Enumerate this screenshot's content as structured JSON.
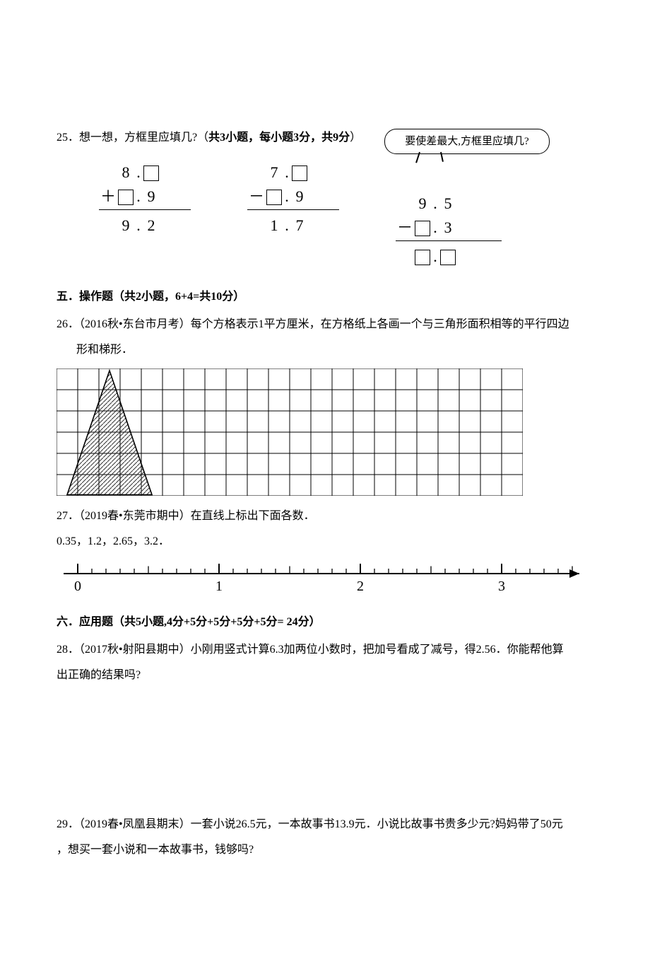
{
  "colors": {
    "text": "#000000",
    "bg": "#ffffff",
    "hatch": "#555555"
  },
  "q25": {
    "stem": "25．想一想，方框里应填几?（",
    "stem_bold": "共3小题，每小题3分，共9分",
    "stem_tail": "）",
    "callout": "要使差最大,方框里应填几?",
    "p1": {
      "top_left": "8.",
      "row2_op": "＋",
      "row2_right": ".   9",
      "result": "9.   2"
    },
    "p2": {
      "top_left": "7.",
      "row2_op": "－",
      "row2_right": ".   9",
      "result": "1.   7"
    },
    "p3": {
      "top_right": "9.   5",
      "row2_op": "－",
      "row2_right": ".   3"
    }
  },
  "sec5": {
    "title": "五．操作题（共2小题，6+4=共10分）"
  },
  "q26": {
    "stem": "26．（2016秋•东台市月考）每个方格表示1平方厘米，在方格纸上各画一个与三角形面积相等的平行四边",
    "stem2": "形和梯形．",
    "grid": {
      "cols": 22,
      "rows": 6,
      "cell": 30,
      "strokeColor": "#000000",
      "strokeWidth": 1
    },
    "triangle": {
      "apex": [
        2.5,
        0.1
      ],
      "baseLeft": [
        0.5,
        5.95
      ],
      "baseRight": [
        4.5,
        5.95
      ],
      "hatchSpacing": 6,
      "hatchColor": "#333333",
      "outline": "#000000",
      "outlineWidth": 1.6
    }
  },
  "q27": {
    "stem": "27．（2019春•东莞市期中）在直线上标出下面各数．",
    "values": "0.35，1.2，2.65，3.2．",
    "numberline": {
      "majors": [
        0,
        1,
        2,
        3
      ],
      "minorPerMajor": 10,
      "y": 24,
      "startX": 30,
      "unitPx": 200,
      "majorH": 14,
      "minorH": 7,
      "labelFont": 20,
      "stroke": "#000000"
    }
  },
  "sec6": {
    "title": "六．应用题（共5小题,4分+5分+5分+5分+5分= 24分）"
  },
  "q28": {
    "l1": "28．（2017秋•射阳县期中）小刚用竖式计算6.3加两位小数时，把加号看成了减号，得2.56．你能帮他算",
    "l2": "出正确的结果吗?"
  },
  "q29": {
    "l1": "29．（2019春•凤凰县期末）一套小说26.5元，一本故事书13.9元．小说比故事书贵多少元?妈妈带了50元",
    "l2": "，想买一套小说和一本故事书，钱够吗?"
  }
}
